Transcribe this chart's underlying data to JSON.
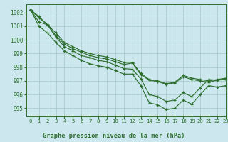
{
  "title": "Graphe pression niveau de la mer (hPa)",
  "background_color": "#cce8ee",
  "grid_color": "#aacccc",
  "line_color": "#2d6e2d",
  "xlim": [
    -0.5,
    23
  ],
  "ylim": [
    994.4,
    1002.6
  ],
  "yticks": [
    995,
    996,
    997,
    998,
    999,
    1000,
    1001,
    1002
  ],
  "xticks": [
    0,
    1,
    2,
    3,
    4,
    5,
    6,
    7,
    8,
    9,
    10,
    11,
    12,
    13,
    14,
    15,
    16,
    17,
    18,
    19,
    20,
    21,
    22,
    23
  ],
  "series": [
    [
      1002.2,
      1001.7,
      1001.1,
      1000.5,
      999.8,
      999.5,
      999.2,
      999.0,
      998.85,
      998.75,
      998.55,
      998.35,
      998.35,
      997.55,
      997.1,
      997.0,
      996.8,
      996.9,
      997.4,
      997.2,
      997.1,
      997.0,
      997.1,
      997.2
    ],
    [
      1002.2,
      1001.6,
      1001.1,
      1000.3,
      999.7,
      999.35,
      999.1,
      998.85,
      998.7,
      998.6,
      998.4,
      998.2,
      998.3,
      997.45,
      997.05,
      996.95,
      996.75,
      996.85,
      997.3,
      997.1,
      997.0,
      996.9,
      997.05,
      997.15
    ],
    [
      1002.2,
      1001.3,
      1001.1,
      1000.2,
      999.5,
      999.2,
      998.85,
      998.7,
      998.5,
      998.4,
      998.15,
      997.9,
      997.85,
      997.15,
      996.0,
      995.85,
      995.5,
      995.6,
      996.15,
      995.85,
      996.5,
      997.1,
      997.05,
      997.1
    ],
    [
      1002.2,
      1001.0,
      1000.5,
      999.8,
      999.2,
      998.85,
      998.5,
      998.25,
      998.1,
      998.0,
      997.75,
      997.5,
      997.5,
      996.65,
      995.4,
      995.25,
      994.9,
      995.0,
      995.6,
      995.3,
      996.0,
      996.65,
      996.55,
      996.65
    ]
  ]
}
